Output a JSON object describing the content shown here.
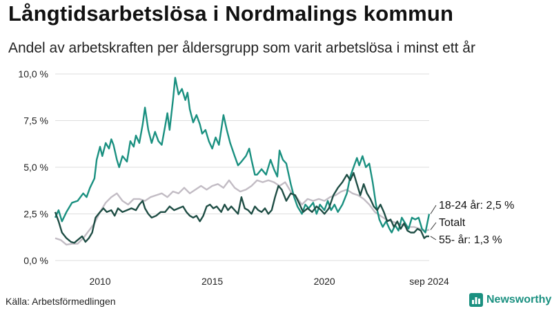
{
  "header": {
    "title": "Långtidsarbetslösa i Nordmalings kommun",
    "subtitle": "Andel av arbetskraften per åldersgrupp som varit arbetslösa i minst ett år"
  },
  "footer": {
    "source": "Källa: Arbetsförmedlingen",
    "brand": "Newsworthy"
  },
  "colors": {
    "youth": "#1a9080",
    "total": "#c2bcc4",
    "older": "#1e4d44",
    "grid": "#dddddd"
  },
  "chart_data": {
    "type": "line",
    "title": "Långtidsarbetslösa i Nordmalings kommun",
    "subtitle": "Andel av arbetskraften per åldersgrupp som varit arbetslösa i minst ett år",
    "xlabel": "",
    "ylabel": "",
    "xlim": [
      2008.0,
      2024.67
    ],
    "ylim": [
      0,
      10
    ],
    "grid": true,
    "y_ticks": [
      {
        "value": 0,
        "label": "0,0 %"
      },
      {
        "value": 2.5,
        "label": "2,5 %"
      },
      {
        "value": 5,
        "label": "5,0 %"
      },
      {
        "value": 7.5,
        "label": "7,5 %"
      },
      {
        "value": 10,
        "label": "10,0 %"
      }
    ],
    "x_ticks": [
      {
        "value": 2010,
        "label": "2010"
      },
      {
        "value": 2015,
        "label": "2015"
      },
      {
        "value": 2020,
        "label": "2020"
      },
      {
        "value": 2024.67,
        "label": "sep 2024"
      }
    ],
    "series": [
      {
        "key": "total",
        "name": "Totalt",
        "end_label": "Totalt",
        "points": [
          [
            2008.0,
            1.2
          ],
          [
            2008.25,
            1.1
          ],
          [
            2008.5,
            0.85
          ],
          [
            2008.75,
            0.9
          ],
          [
            2009.0,
            0.9
          ],
          [
            2009.25,
            1.2
          ],
          [
            2009.5,
            1.6
          ],
          [
            2009.75,
            2.0
          ],
          [
            2010.0,
            2.6
          ],
          [
            2010.25,
            3.1
          ],
          [
            2010.5,
            3.4
          ],
          [
            2010.75,
            3.6
          ],
          [
            2011.0,
            3.2
          ],
          [
            2011.25,
            3.0
          ],
          [
            2011.5,
            3.3
          ],
          [
            2011.75,
            3.3
          ],
          [
            2012.0,
            3.2
          ],
          [
            2012.25,
            3.4
          ],
          [
            2012.5,
            3.5
          ],
          [
            2012.75,
            3.6
          ],
          [
            2013.0,
            3.4
          ],
          [
            2013.25,
            3.7
          ],
          [
            2013.5,
            3.6
          ],
          [
            2013.75,
            3.9
          ],
          [
            2014.0,
            3.6
          ],
          [
            2014.25,
            3.8
          ],
          [
            2014.5,
            4.0
          ],
          [
            2014.75,
            3.8
          ],
          [
            2015.0,
            4.0
          ],
          [
            2015.25,
            4.1
          ],
          [
            2015.5,
            3.9
          ],
          [
            2015.75,
            4.3
          ],
          [
            2016.0,
            3.9
          ],
          [
            2016.25,
            3.7
          ],
          [
            2016.5,
            3.8
          ],
          [
            2016.75,
            4.0
          ],
          [
            2017.0,
            4.3
          ],
          [
            2017.25,
            4.2
          ],
          [
            2017.5,
            4.3
          ],
          [
            2017.75,
            4.2
          ],
          [
            2018.0,
            4.0
          ],
          [
            2018.25,
            4.2
          ],
          [
            2018.5,
            3.7
          ],
          [
            2018.75,
            3.4
          ],
          [
            2019.0,
            3.0
          ],
          [
            2019.25,
            3.3
          ],
          [
            2019.5,
            3.2
          ],
          [
            2019.75,
            3.3
          ],
          [
            2020.0,
            3.2
          ],
          [
            2020.25,
            3.4
          ],
          [
            2020.5,
            3.5
          ],
          [
            2020.75,
            3.7
          ],
          [
            2021.0,
            3.8
          ],
          [
            2021.25,
            3.6
          ],
          [
            2021.5,
            3.5
          ],
          [
            2021.75,
            3.3
          ],
          [
            2022.0,
            3.0
          ],
          [
            2022.25,
            2.6
          ],
          [
            2022.5,
            2.4
          ],
          [
            2022.75,
            2.2
          ],
          [
            2023.0,
            2.1
          ],
          [
            2023.25,
            2.0
          ],
          [
            2023.5,
            1.9
          ],
          [
            2023.75,
            1.8
          ],
          [
            2024.0,
            1.8
          ],
          [
            2024.25,
            1.7
          ],
          [
            2024.5,
            1.6
          ],
          [
            2024.67,
            1.65
          ]
        ]
      },
      {
        "key": "youth",
        "name": "18-24 år",
        "end_label": "18-24 år: 2,5 %",
        "points": [
          [
            2008.0,
            2.3
          ],
          [
            2008.15,
            2.7
          ],
          [
            2008.3,
            2.1
          ],
          [
            2008.5,
            2.6
          ],
          [
            2008.75,
            3.1
          ],
          [
            2009.0,
            3.2
          ],
          [
            2009.25,
            3.6
          ],
          [
            2009.4,
            3.4
          ],
          [
            2009.55,
            3.9
          ],
          [
            2009.75,
            4.4
          ],
          [
            2009.85,
            5.4
          ],
          [
            2010.0,
            6.1
          ],
          [
            2010.1,
            5.6
          ],
          [
            2010.25,
            6.3
          ],
          [
            2010.4,
            6.0
          ],
          [
            2010.5,
            6.5
          ],
          [
            2010.6,
            6.2
          ],
          [
            2010.75,
            5.4
          ],
          [
            2010.85,
            5.0
          ],
          [
            2011.0,
            5.6
          ],
          [
            2011.2,
            5.3
          ],
          [
            2011.35,
            6.4
          ],
          [
            2011.5,
            6.1
          ],
          [
            2011.6,
            6.7
          ],
          [
            2011.75,
            6.3
          ],
          [
            2011.9,
            7.3
          ],
          [
            2012.0,
            8.2
          ],
          [
            2012.15,
            7.0
          ],
          [
            2012.3,
            6.3
          ],
          [
            2012.45,
            6.9
          ],
          [
            2012.6,
            6.4
          ],
          [
            2012.75,
            6.2
          ],
          [
            2012.9,
            7.2
          ],
          [
            2013.0,
            7.9
          ],
          [
            2013.1,
            7.0
          ],
          [
            2013.25,
            8.6
          ],
          [
            2013.35,
            9.8
          ],
          [
            2013.5,
            8.9
          ],
          [
            2013.65,
            9.2
          ],
          [
            2013.8,
            8.6
          ],
          [
            2013.9,
            9.0
          ],
          [
            2014.0,
            8.1
          ],
          [
            2014.15,
            7.4
          ],
          [
            2014.3,
            7.8
          ],
          [
            2014.45,
            7.3
          ],
          [
            2014.55,
            6.8
          ],
          [
            2014.7,
            7.0
          ],
          [
            2014.85,
            6.4
          ],
          [
            2015.0,
            6.0
          ],
          [
            2015.15,
            6.6
          ],
          [
            2015.3,
            6.2
          ],
          [
            2015.5,
            7.8
          ],
          [
            2015.65,
            7.0
          ],
          [
            2015.8,
            6.3
          ],
          [
            2016.0,
            5.6
          ],
          [
            2016.15,
            5.1
          ],
          [
            2016.3,
            5.3
          ],
          [
            2016.5,
            5.6
          ],
          [
            2016.65,
            6.0
          ],
          [
            2016.75,
            5.4
          ],
          [
            2016.9,
            4.6
          ],
          [
            2017.0,
            4.6
          ],
          [
            2017.2,
            4.9
          ],
          [
            2017.4,
            4.6
          ],
          [
            2017.6,
            5.4
          ],
          [
            2017.75,
            4.9
          ],
          [
            2017.9,
            4.5
          ],
          [
            2018.0,
            5.9
          ],
          [
            2018.15,
            5.4
          ],
          [
            2018.3,
            5.2
          ],
          [
            2018.5,
            4.1
          ],
          [
            2018.65,
            3.4
          ],
          [
            2018.8,
            2.9
          ],
          [
            2019.0,
            2.5
          ],
          [
            2019.15,
            3.0
          ],
          [
            2019.3,
            2.8
          ],
          [
            2019.5,
            3.1
          ],
          [
            2019.65,
            2.5
          ],
          [
            2019.8,
            3.0
          ],
          [
            2020.0,
            2.7
          ],
          [
            2020.15,
            3.2
          ],
          [
            2020.3,
            2.7
          ],
          [
            2020.45,
            3.0
          ],
          [
            2020.6,
            2.6
          ],
          [
            2020.8,
            3.0
          ],
          [
            2021.0,
            3.6
          ],
          [
            2021.15,
            4.5
          ],
          [
            2021.3,
            5.0
          ],
          [
            2021.45,
            5.5
          ],
          [
            2021.55,
            5.1
          ],
          [
            2021.7,
            5.6
          ],
          [
            2021.85,
            5.0
          ],
          [
            2022.0,
            5.2
          ],
          [
            2022.15,
            4.2
          ],
          [
            2022.3,
            3.0
          ],
          [
            2022.45,
            2.2
          ],
          [
            2022.6,
            1.8
          ],
          [
            2022.75,
            2.1
          ],
          [
            2022.9,
            1.7
          ],
          [
            2023.0,
            1.5
          ],
          [
            2023.15,
            1.9
          ],
          [
            2023.3,
            1.6
          ],
          [
            2023.45,
            2.3
          ],
          [
            2023.6,
            2.0
          ],
          [
            2023.75,
            1.7
          ],
          [
            2023.9,
            2.3
          ],
          [
            2024.05,
            2.2
          ],
          [
            2024.2,
            2.3
          ],
          [
            2024.35,
            1.7
          ],
          [
            2024.5,
            1.5
          ],
          [
            2024.67,
            2.5
          ]
        ]
      },
      {
        "key": "older",
        "name": "55- år",
        "end_label": "55- år: 1,3 %",
        "points": [
          [
            2008.0,
            2.6
          ],
          [
            2008.15,
            2.1
          ],
          [
            2008.3,
            1.5
          ],
          [
            2008.5,
            1.2
          ],
          [
            2008.7,
            1.0
          ],
          [
            2008.85,
            0.95
          ],
          [
            2009.0,
            1.1
          ],
          [
            2009.2,
            1.3
          ],
          [
            2009.35,
            1.0
          ],
          [
            2009.5,
            1.2
          ],
          [
            2009.65,
            1.5
          ],
          [
            2009.8,
            2.3
          ],
          [
            2010.0,
            2.6
          ],
          [
            2010.15,
            2.8
          ],
          [
            2010.3,
            2.6
          ],
          [
            2010.5,
            2.7
          ],
          [
            2010.65,
            2.4
          ],
          [
            2010.8,
            2.8
          ],
          [
            2011.0,
            2.6
          ],
          [
            2011.2,
            2.7
          ],
          [
            2011.4,
            2.8
          ],
          [
            2011.6,
            2.7
          ],
          [
            2011.75,
            3.0
          ],
          [
            2011.9,
            3.2
          ],
          [
            2012.0,
            2.8
          ],
          [
            2012.15,
            2.5
          ],
          [
            2012.3,
            2.3
          ],
          [
            2012.5,
            2.4
          ],
          [
            2012.7,
            2.6
          ],
          [
            2012.9,
            2.6
          ],
          [
            2013.1,
            2.9
          ],
          [
            2013.3,
            2.7
          ],
          [
            2013.5,
            2.8
          ],
          [
            2013.7,
            2.9
          ],
          [
            2013.85,
            2.6
          ],
          [
            2014.0,
            2.4
          ],
          [
            2014.15,
            2.3
          ],
          [
            2014.3,
            2.4
          ],
          [
            2014.45,
            2.1
          ],
          [
            2014.6,
            2.4
          ],
          [
            2014.75,
            2.9
          ],
          [
            2014.9,
            3.0
          ],
          [
            2015.05,
            2.8
          ],
          [
            2015.2,
            2.9
          ],
          [
            2015.4,
            2.6
          ],
          [
            2015.55,
            3.0
          ],
          [
            2015.7,
            2.7
          ],
          [
            2015.85,
            2.9
          ],
          [
            2016.0,
            2.7
          ],
          [
            2016.15,
            2.5
          ],
          [
            2016.3,
            3.4
          ],
          [
            2016.45,
            2.8
          ],
          [
            2016.6,
            2.7
          ],
          [
            2016.75,
            2.5
          ],
          [
            2016.9,
            2.9
          ],
          [
            2017.05,
            2.7
          ],
          [
            2017.2,
            2.6
          ],
          [
            2017.35,
            2.8
          ],
          [
            2017.5,
            2.5
          ],
          [
            2017.65,
            2.7
          ],
          [
            2017.8,
            3.4
          ],
          [
            2017.95,
            4.0
          ],
          [
            2018.1,
            3.8
          ],
          [
            2018.3,
            3.2
          ],
          [
            2018.5,
            3.6
          ],
          [
            2018.7,
            3.5
          ],
          [
            2018.9,
            3.0
          ],
          [
            2019.05,
            2.6
          ],
          [
            2019.25,
            2.8
          ],
          [
            2019.45,
            2.6
          ],
          [
            2019.65,
            2.9
          ],
          [
            2019.85,
            2.7
          ],
          [
            2020.0,
            2.5
          ],
          [
            2020.2,
            2.8
          ],
          [
            2020.4,
            3.5
          ],
          [
            2020.6,
            3.9
          ],
          [
            2020.8,
            4.2
          ],
          [
            2021.0,
            4.6
          ],
          [
            2021.15,
            4.3
          ],
          [
            2021.3,
            4.7
          ],
          [
            2021.45,
            4.1
          ],
          [
            2021.6,
            3.5
          ],
          [
            2021.75,
            4.1
          ],
          [
            2021.9,
            3.6
          ],
          [
            2022.05,
            3.3
          ],
          [
            2022.2,
            2.9
          ],
          [
            2022.35,
            2.7
          ],
          [
            2022.5,
            3.0
          ],
          [
            2022.65,
            2.6
          ],
          [
            2022.8,
            2.1
          ],
          [
            2022.95,
            2.2
          ],
          [
            2023.1,
            1.8
          ],
          [
            2023.25,
            2.1
          ],
          [
            2023.4,
            1.7
          ],
          [
            2023.55,
            2.0
          ],
          [
            2023.7,
            1.6
          ],
          [
            2023.85,
            1.5
          ],
          [
            2024.0,
            1.5
          ],
          [
            2024.15,
            1.7
          ],
          [
            2024.3,
            1.6
          ],
          [
            2024.45,
            1.2
          ],
          [
            2024.55,
            1.3
          ],
          [
            2024.67,
            1.3
          ]
        ]
      }
    ]
  }
}
